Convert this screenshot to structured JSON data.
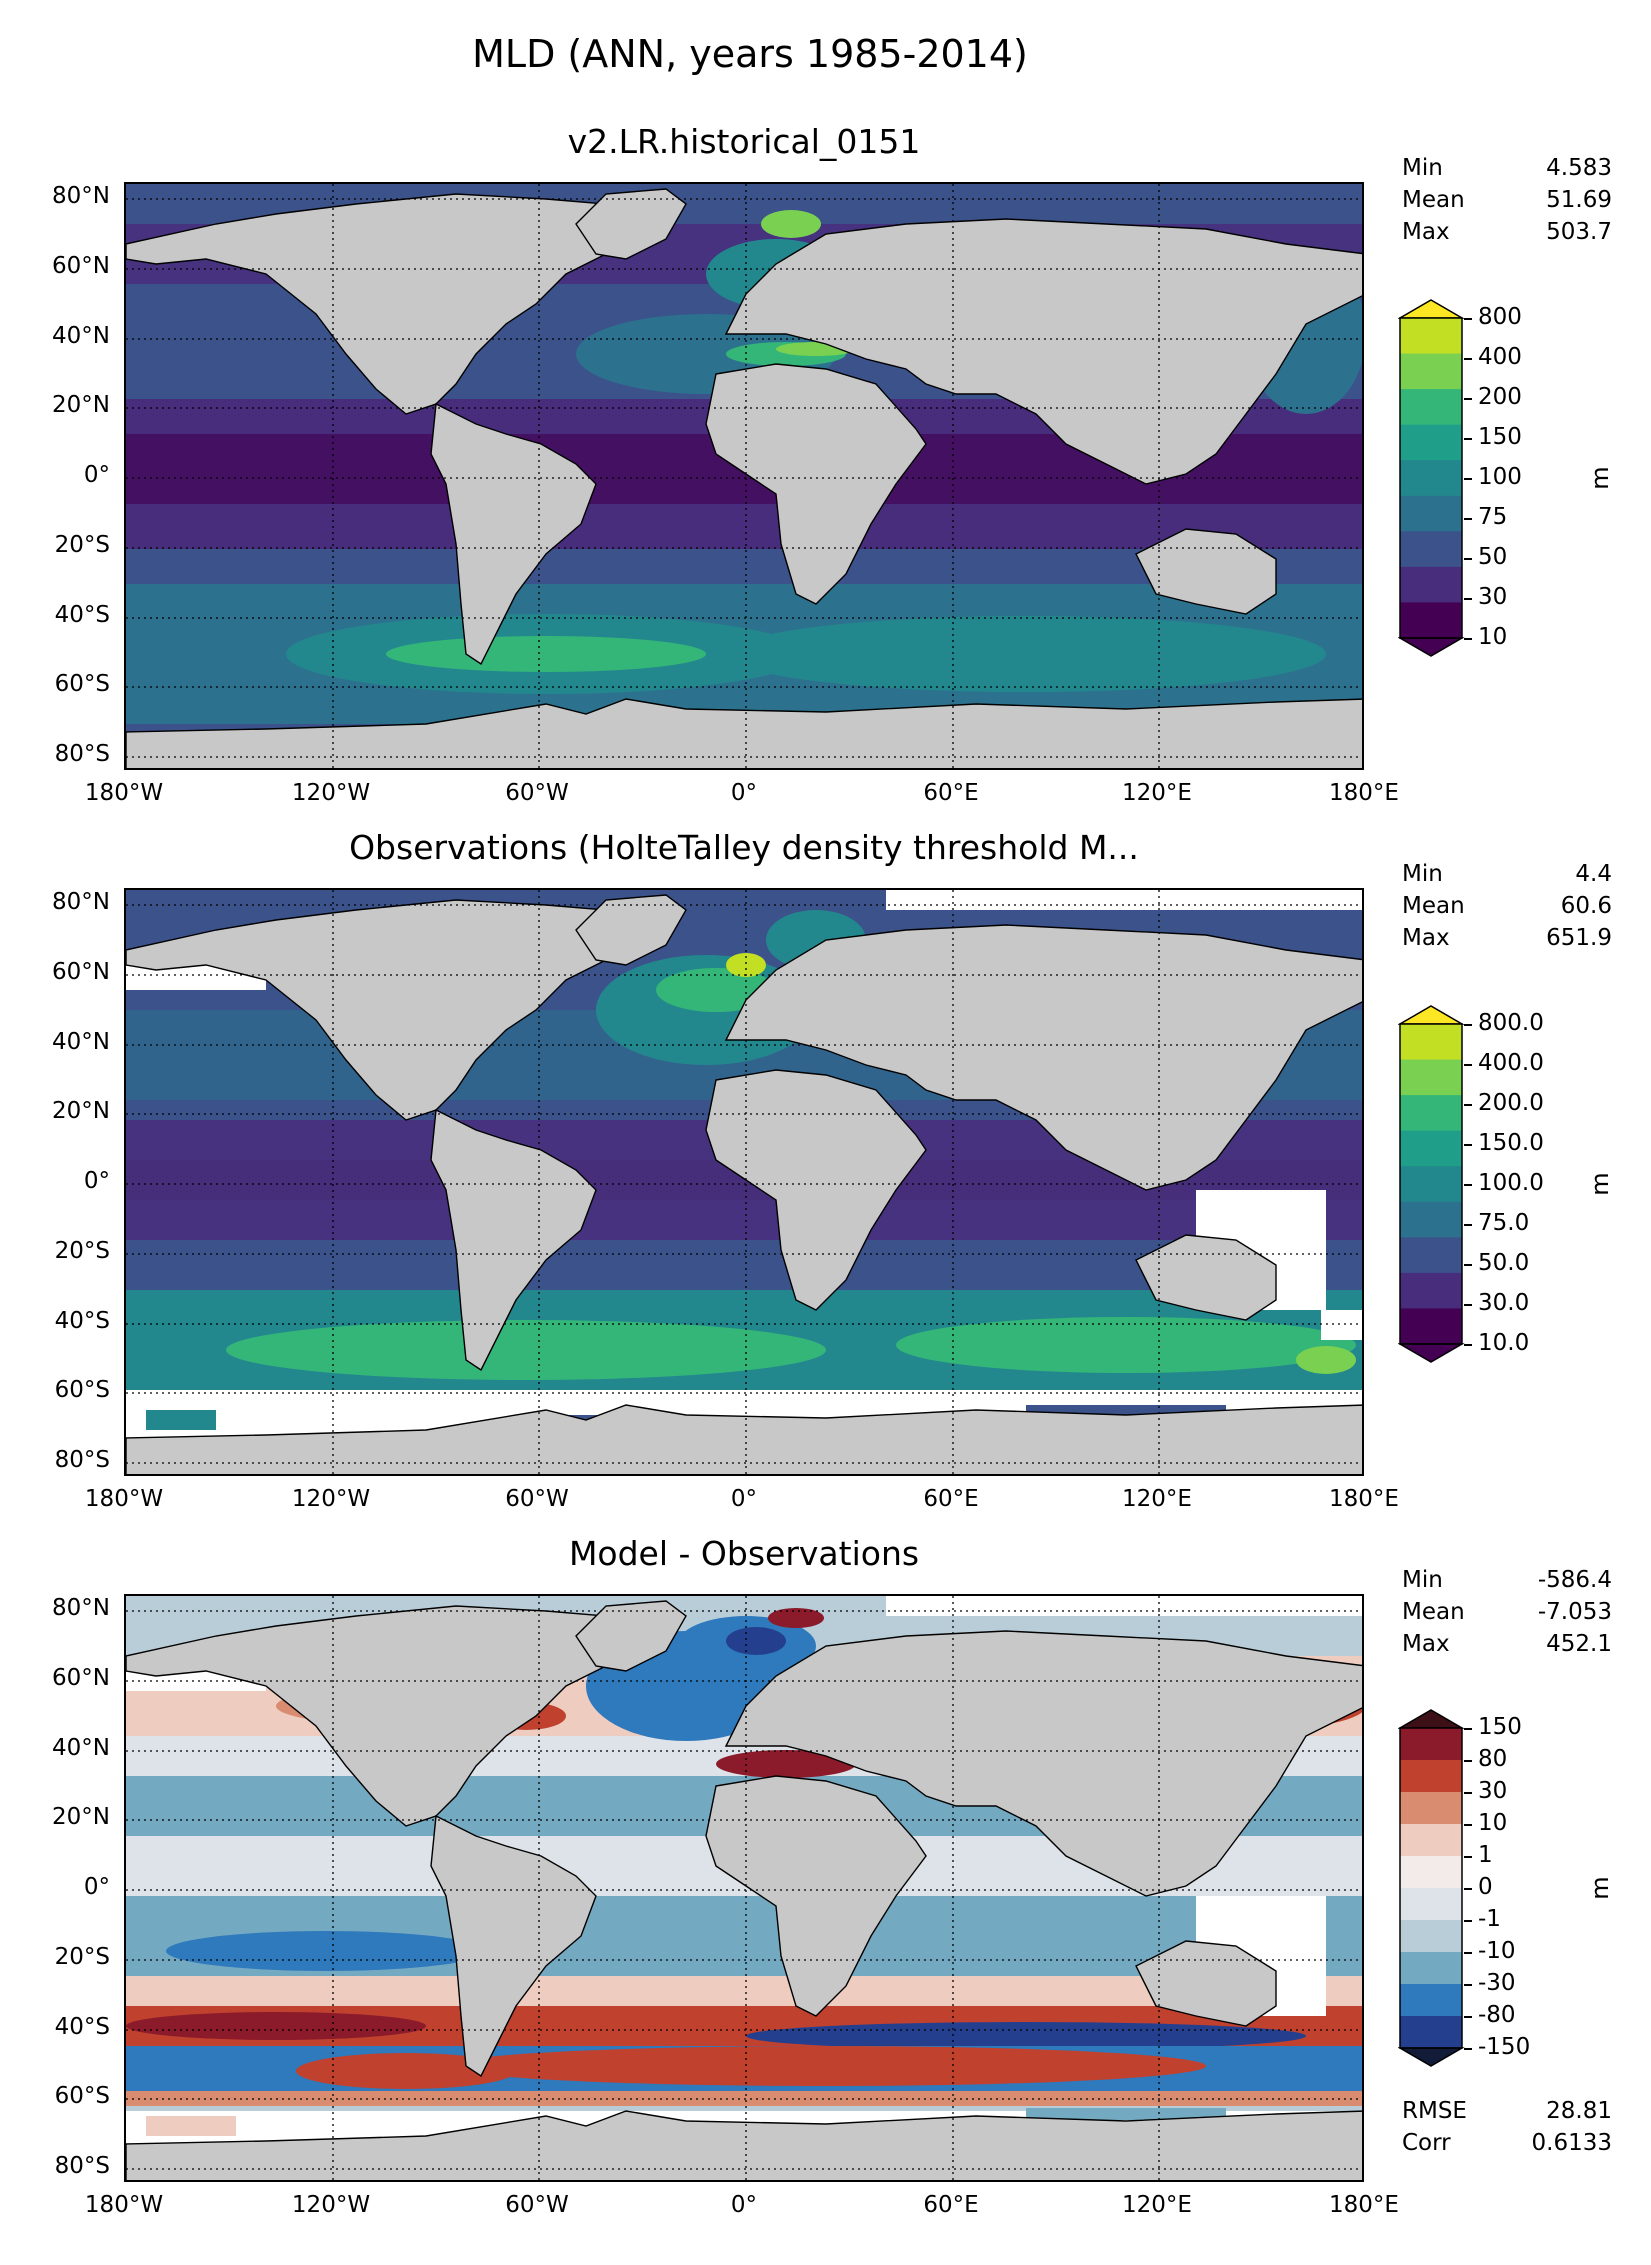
{
  "figure": {
    "title": "MLD (ANN, years 1985-2014)"
  },
  "axes": {
    "lat_labels": [
      "80°N",
      "60°N",
      "40°N",
      "20°N",
      "0°",
      "20°S",
      "40°S",
      "60°S",
      "80°S"
    ],
    "lon_labels": [
      "180°W",
      "120°W",
      "60°W",
      "0°",
      "60°E",
      "120°E",
      "180°E"
    ]
  },
  "panels": [
    {
      "title": "v2.LR.historical_0151",
      "stats": [
        {
          "label": "Min",
          "value": "4.583"
        },
        {
          "label": "Mean",
          "value": "51.69"
        },
        {
          "label": "Max",
          "value": "503.7"
        }
      ],
      "colorbar": {
        "unit": "m",
        "ticks": [
          "800",
          "400",
          "200",
          "150",
          "100",
          "75",
          "50",
          "30",
          "10"
        ],
        "colors": [
          "#c2df23",
          "#7ad151",
          "#34b679",
          "#1f9e89",
          "#23888e",
          "#2c728e",
          "#3b528b",
          "#472d7b",
          "#440154"
        ],
        "top_color": "#fde725",
        "bottom_color": "#440154"
      }
    },
    {
      "title": "Observations (HolteTalley density threshold M...",
      "stats": [
        {
          "label": "Min",
          "value": "4.4"
        },
        {
          "label": "Mean",
          "value": "60.6"
        },
        {
          "label": "Max",
          "value": "651.9"
        }
      ],
      "colorbar": {
        "unit": "m",
        "ticks": [
          "800.0",
          "400.0",
          "200.0",
          "150.0",
          "100.0",
          "75.0",
          "50.0",
          "30.0",
          "10.0"
        ],
        "colors": [
          "#c2df23",
          "#7ad151",
          "#34b679",
          "#1f9e89",
          "#23888e",
          "#2c728e",
          "#3b528b",
          "#472d7b",
          "#440154"
        ],
        "top_color": "#fde725",
        "bottom_color": "#440154"
      }
    },
    {
      "title": "Model - Observations",
      "stats": [
        {
          "label": "Min",
          "value": "-586.4"
        },
        {
          "label": "Mean",
          "value": "-7.053"
        },
        {
          "label": "Max",
          "value": "452.1"
        }
      ],
      "extra_stats": [
        {
          "label": "RMSE",
          "value": "28.81"
        },
        {
          "label": "Corr",
          "value": "0.6133"
        }
      ],
      "colorbar": {
        "unit": "m",
        "ticks": [
          "150",
          "80",
          "30",
          "10",
          "1",
          "0",
          "-1",
          "-10",
          "-30",
          "-80",
          "-150"
        ],
        "colors": [
          "#8b1a2b",
          "#c0412e",
          "#d98c70",
          "#eeccc0",
          "#f2ebea",
          "#dde3e8",
          "#b9cdd8",
          "#74a9c2",
          "#2f79bd",
          "#253f8f"
        ],
        "top_color": "#3c1016",
        "bottom_color": "#121c38"
      }
    }
  ]
}
